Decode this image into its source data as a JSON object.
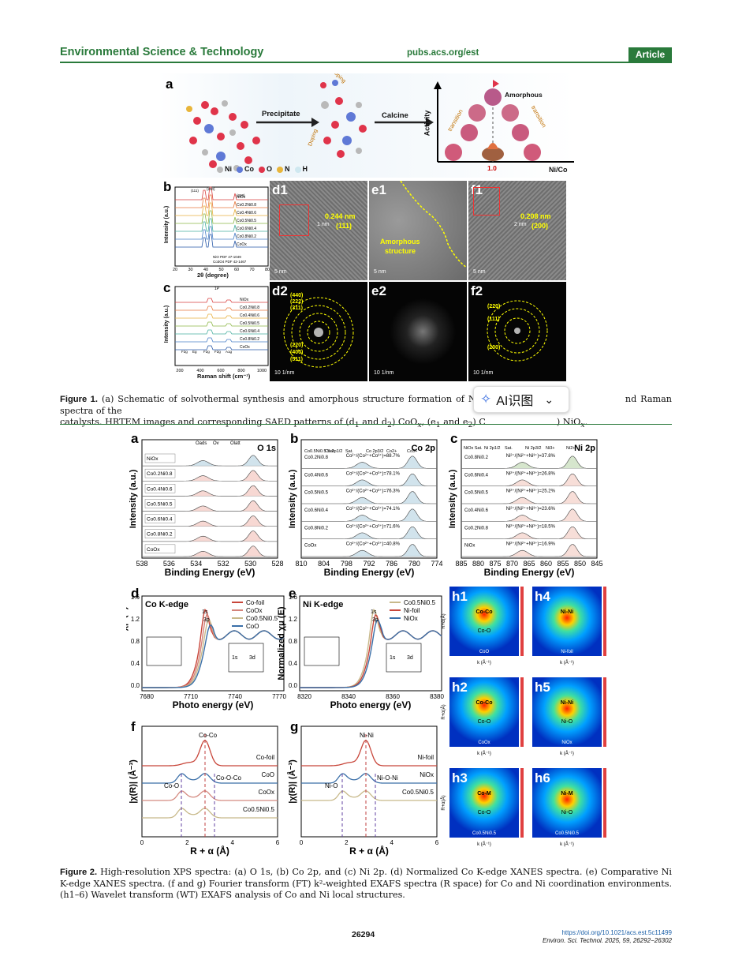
{
  "header": {
    "journal": "Environmental Science & Technology",
    "url": "pubs.acs.org/est",
    "badge": "Article"
  },
  "fig1": {
    "a": {
      "label": "a",
      "step1": "Precipitate",
      "step2": "Calcine",
      "amorphous": "Amorphous",
      "left_trans": "transition",
      "right_trans": "transition",
      "doping1": "Doping",
      "doping2": "Doping",
      "y_axis": "Activity",
      "x_axis": "Ni/Co",
      "x_tick": "1.0",
      "legend": [
        {
          "name": "Ni",
          "color": "#b9b9b9"
        },
        {
          "name": "Co",
          "color": "#5f79d6"
        },
        {
          "name": "O",
          "color": "#e0344a"
        },
        {
          "name": "N",
          "color": "#e8b53a"
        },
        {
          "name": "H",
          "color": "#cfe8f0"
        }
      ]
    },
    "b": {
      "label": "b",
      "xlabel": "2θ (degree)",
      "ylabel": "Intensity (a.u.)",
      "xticks": [
        "20",
        "30",
        "40",
        "50",
        "60",
        "70",
        "80"
      ],
      "peaks": [
        "(111)",
        "(200)",
        "(220)",
        "(111)",
        "(220)",
        "(311)",
        "(400)",
        "(511)",
        "(440)"
      ],
      "samples": [
        "NiOx",
        "Co0.2Ni0.8",
        "Co0.4Ni0.6",
        "Co0.5Ni0.5",
        "Co0.6Ni0.4",
        "Co0.8Ni0.2",
        "CoOx"
      ],
      "refs": [
        "NiO PDF 47-1049",
        "Co3O4 PDF 42-1467"
      ]
    },
    "c": {
      "label": "c",
      "xlabel": "Raman shift (cm⁻¹)",
      "ylabel": "Intensity (a.u.)",
      "xticks": [
        "200",
        "400",
        "600",
        "800",
        "1000"
      ],
      "peak": "1P",
      "samples": [
        "NiOx",
        "Co0.2Ni0.8",
        "Co0.4Ni0.6",
        "Co0.5Ni0.5",
        "Co0.6Ni0.4",
        "Co0.8Ni0.2",
        "CoOx"
      ],
      "modes": [
        "F2g",
        "Eg",
        "F2g",
        "F2g",
        "A1g"
      ]
    },
    "d1": {
      "label": "d1",
      "spacing": "0.244 nm",
      "plane": "(111)",
      "scale": "5 nm",
      "inset_scale": "1 nm"
    },
    "e1": {
      "label": "e1",
      "text1": "Amorphous",
      "text2": "structure",
      "scale": "5 nm"
    },
    "f1": {
      "label": "f1",
      "spacing": "0.208 nm",
      "plane": "(200)",
      "scale": "5 nm",
      "inset_scale": "2 nm"
    },
    "d2": {
      "label": "d2",
      "rings_top": [
        "(440)",
        "(222)",
        "(311)"
      ],
      "rings_bottom": [
        "(220)",
        "(400)",
        "(511)"
      ],
      "scale": "10 1/nm"
    },
    "e2": {
      "label": "e2",
      "scale": "10 1/nm"
    },
    "f2": {
      "label": "f2",
      "rings": [
        "(220)",
        "(111)",
        "(200)"
      ],
      "scale": "10 1/nm"
    }
  },
  "caption1": {
    "head": "Figure 1.",
    "text": "(a) Schematic of solvothermal synthesis and amorphous structure formation of Ni−Co ox",
    "text_right": "nd Raman spectra of the",
    "line2": "catalysts. HRTEM images and corresponding SAED patterns of (d",
    "line2b": "and d",
    "line2c": ") CoO",
    "line2d": ", (e",
    "line2e": "and e",
    "line2f": ") C",
    "line2g": ") NiO",
    "line2h": "."
  },
  "ai_button": {
    "icon": "sparkle-icon",
    "label": "AI识图",
    "chevron": "⌄"
  },
  "fig2": {
    "a": {
      "label": "a",
      "title": "O 1s",
      "xlabel": "Binding Energy (eV)",
      "ylabel": "Intensity (a.u.)",
      "xticks": [
        "538",
        "536",
        "534",
        "532",
        "530",
        "528"
      ],
      "peaks": [
        "Oads",
        "Ov",
        "Olatt"
      ],
      "samples": [
        "NiOx",
        "Co0.2Ni0.8",
        "Co0.4Ni0.6",
        "Co0.5Ni0.5",
        "Co0.6Ni0.4",
        "Co0.8Ni0.2",
        "CoOx"
      ]
    },
    "b": {
      "label": "b",
      "title": "Co 2p",
      "xlabel": "Binding Energy (eV)",
      "ylabel": "Intensity (a.u.)",
      "xticks": [
        "810",
        "804",
        "798",
        "792",
        "786",
        "780",
        "774"
      ],
      "peaks": [
        "Co0.5Ni0.5 Sat.",
        "Co 2p1/2",
        "Sat.",
        "Co 2p3/2",
        "Co2+",
        "Co3+"
      ],
      "rows": [
        {
          "s": "Co0.2Ni0.8",
          "r": "Co²⁺/(Co²⁺+Co³⁺)=88.7%"
        },
        {
          "s": "Co0.4Ni0.6",
          "r": "Co²⁺/(Co²⁺+Co³⁺)=78.1%"
        },
        {
          "s": "Co0.5Ni0.5",
          "r": "Co²⁺/(Co²⁺+Co³⁺)=76.3%"
        },
        {
          "s": "Co0.6Ni0.4",
          "r": "Co²⁺/(Co²⁺+Co³⁺)=74.1%"
        },
        {
          "s": "Co0.8Ni0.2",
          "r": "Co²⁺/(Co²⁺+Co³⁺)=71.6%"
        },
        {
          "s": "CoOx",
          "r": "Co²⁺/(Co²⁺+Co³⁺)=40.8%"
        }
      ]
    },
    "c": {
      "label": "c",
      "title": "Ni 2p",
      "xlabel": "Binding Energy (eV)",
      "ylabel": "Intensity (a.u.)",
      "xticks": [
        "885",
        "880",
        "875",
        "870",
        "865",
        "860",
        "855",
        "850",
        "845"
      ],
      "peaks": [
        "NiOx Sat.",
        "Ni 2p1/2",
        "Sat.",
        "Ni 2p3/2",
        "Ni3+",
        "Ni2+"
      ],
      "rows": [
        {
          "s": "Co0.8Ni0.2",
          "r": "Ni²⁺/(Ni²⁺+Ni³⁺)=37.8%"
        },
        {
          "s": "Co0.6Ni0.4",
          "r": "Ni²⁺/(Ni²⁺+Ni³⁺)=26.8%"
        },
        {
          "s": "Co0.5Ni0.5",
          "r": "Ni²⁺/(Ni²⁺+Ni³⁺)=25.2%"
        },
        {
          "s": "Co0.4Ni0.6",
          "r": "Ni²⁺/(Ni²⁺+Ni³⁺)=23.6%"
        },
        {
          "s": "Co0.2Ni0.8",
          "r": "Ni²⁺/(Ni²⁺+Ni³⁺)=18.5%"
        },
        {
          "s": "NiOx",
          "r": "Ni²⁺/(Ni²⁺+Ni³⁺)=16.9%"
        }
      ]
    },
    "d": {
      "label": "d",
      "title": "Co K-edge",
      "xlabel": "Photo energy (eV)",
      "ylabel": "Normalized χμ (E)",
      "xticks": [
        "7680",
        "7710",
        "7740",
        "7770"
      ],
      "yticks": [
        "0.0",
        "0.4",
        "0.8",
        "1.2",
        "1.6"
      ],
      "anno1": "1s",
      "anno2": "3p",
      "anno3": "1s",
      "anno4": "3d",
      "legend": [
        {
          "name": "Co-foil",
          "color": "#c8463a"
        },
        {
          "name": "CoOx",
          "color": "#d4837a"
        },
        {
          "name": "Co0.5Ni0.5",
          "color": "#c8b98a"
        },
        {
          "name": "CoO",
          "color": "#3a6fa8"
        }
      ]
    },
    "e": {
      "label": "e",
      "title": "Ni K-edge",
      "xlabel": "Photo energy (eV)",
      "ylabel": "Normalized χμ (E)",
      "xticks": [
        "8320",
        "8340",
        "8360",
        "8380"
      ],
      "yticks": [
        "0.0",
        "0.4",
        "0.8",
        "1.2",
        "1.6"
      ],
      "anno1": "1s",
      "anno2": "3p",
      "anno3": "1s",
      "anno4": "3d",
      "legend": [
        {
          "name": "Co0.5Ni0.5",
          "color": "#c8b98a"
        },
        {
          "name": "Ni-foil",
          "color": "#c8463a"
        },
        {
          "name": "NiOx",
          "color": "#3a6fa8"
        }
      ]
    },
    "f": {
      "label": "f",
      "xlabel": "R + α (Å)",
      "ylabel": "|χ(R)| (Å⁻³)",
      "xticks": [
        "0",
        "2",
        "4",
        "6"
      ],
      "annos": [
        "Co-Co",
        "Co-O-Co",
        "Co-O"
      ],
      "samples": [
        "Co-foil",
        "CoO",
        "CoOx",
        "Co0.5Ni0.5"
      ]
    },
    "g": {
      "label": "g",
      "xlabel": "R + α (Å)",
      "ylabel": "|χ(R)| (Å⁻³)",
      "xticks": [
        "0",
        "2",
        "4",
        "6"
      ],
      "annos": [
        "Ni-Ni",
        "Ni-O-Ni",
        "Ni-O"
      ],
      "samples": [
        "Ni-foil",
        "NiOx",
        "Co0.5Ni0.5"
      ]
    },
    "h": [
      {
        "label": "h1",
        "feature": "Co-Co",
        "feature2": "Co-O",
        "name": "CoO"
      },
      {
        "label": "h4",
        "feature": "Ni-Ni",
        "feature2": "",
        "name": "Ni-foil"
      },
      {
        "label": "h2",
        "feature": "Co-Co",
        "feature2": "Co-O",
        "name": "CoOx"
      },
      {
        "label": "h5",
        "feature": "Ni-Ni",
        "feature2": "Ni-O",
        "name": "NiOx"
      },
      {
        "label": "h3",
        "feature": "Co-M",
        "feature2": "Co-O",
        "name": "Co0.5Ni0.5"
      },
      {
        "label": "h6",
        "feature": "Ni-M",
        "feature2": "Ni-O",
        "name": "Co0.5Ni0.5"
      }
    ],
    "h_xlabel": "k (Å⁻¹)",
    "h_ylabel": "R+α(Å)"
  },
  "caption2": {
    "head": "Figure 2.",
    "text": "High-resolution XPS spectra: (a) O 1s, (b) Co 2p, and (c) Ni 2p. (d) Normalized Co K-edge XANES spectra. (e) Comparative Ni K-edge XANES spectra. (f and g) Fourier transform (FT) k²-weighted EXAFS spectra (R space) for Co and Ni coordination environments. (h1–6) Wavelet transform (WT) EXAFS analysis of Co and Ni local structures."
  },
  "footer": {
    "page": "26294",
    "doi": "https://doi.org/10.1021/acs.est.5c11499",
    "cite": "Environ. Sci. Technol. 2025, 59, 26292−26302"
  }
}
